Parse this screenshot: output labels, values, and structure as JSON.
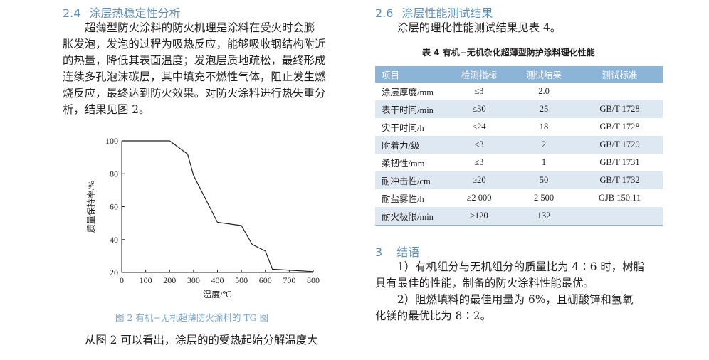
{
  "left": {
    "heading_num": "2.4",
    "heading_title": "涂层热稳定性分析",
    "para_lines": [
      "超薄型防火涂料的防火机理是涂料在受火时会膨",
      "胀发泡，发泡的过程为吸热反应，能够吸收钢结构附近",
      "的热量，降低其表面温度；发泡层质地疏松，最终形成",
      "连续多孔泡沫碳层，其中填充不燃性气体，阻止发生燃",
      "烧反应，最终达到防火效果。对防火涂料进行热失重分",
      "析，结果见图 2。"
    ],
    "figure_caption": "图 2   有机−无机超薄防火涂料的 TG 图",
    "bottom_line": "从图 2 可以看出，涂层的的受热起始分解温度大"
  },
  "right": {
    "heading1_num": "2.6",
    "heading1_title": "涂层性能测试结果",
    "para1": "涂层的理化性能测试结果见表 4。",
    "table_caption": "表 4   有机−无机杂化超薄型防护涂料理化性能",
    "table": {
      "headers": [
        "项目",
        "检测指标",
        "测试结果",
        "测试标准"
      ],
      "rows": [
        [
          "涂层厚度/mm",
          "≤3",
          "2.0",
          ""
        ],
        [
          "表干时间/min",
          "≤30",
          "25",
          "GB/T 1728"
        ],
        [
          "实干时间/h",
          "≤24",
          "18",
          "GB/T 1728"
        ],
        [
          "附着力/级",
          "≤3",
          "2",
          "GB/T 1720"
        ],
        [
          "柔韧性/mm",
          "≤3",
          "1",
          "GB/T 1731"
        ],
        [
          "耐冲击性/cm",
          "≥20",
          "50",
          "GB/T 1732"
        ],
        [
          "耐盐雾性/h",
          "≥2 000",
          "2 500",
          "GJB 150.11"
        ],
        [
          "耐火极限/min",
          "≥120",
          "132",
          ""
        ]
      ]
    },
    "heading2_num": "3",
    "heading2_title": "结语",
    "conclusion_lines": [
      "1）有机组分与无机组分的质量比为 4∶6 时，树脂",
      "具有最佳的性能，制备的防火涂料性能最优。",
      "2）阻燃填料的最佳用量为 6%，且硼酸锌和氢氧",
      "化镁的最优比为 8∶2。"
    ]
  },
  "chart_data": {
    "type": "line",
    "title": "",
    "xlabel": "温度/℃",
    "ylabel": "质量保持率/%",
    "xlim": [
      0,
      800
    ],
    "ylim": [
      20,
      100
    ],
    "xticks": [
      0,
      100,
      200,
      300,
      400,
      500,
      600,
      700,
      800
    ],
    "yticks": [
      20,
      40,
      60,
      80,
      100
    ],
    "x": [
      0,
      200,
      275,
      300,
      400,
      500,
      545,
      600,
      630,
      800
    ],
    "y": [
      100,
      100,
      92,
      79,
      50.5,
      48.5,
      37,
      33,
      22,
      20.5
    ],
    "grid": false,
    "line_color": "#231f20"
  }
}
